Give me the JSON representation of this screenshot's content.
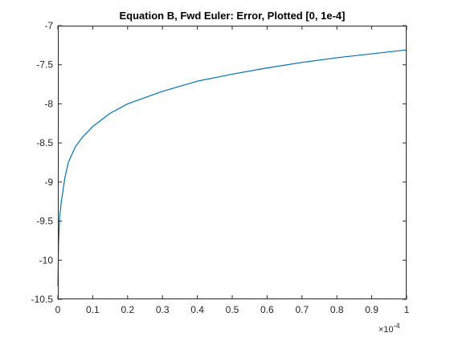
{
  "chart_data": {
    "type": "line",
    "title": "Equation B, Fwd Euler: Error, Plotted [0, 1e-4]",
    "xlabel": "",
    "ylabel": "",
    "x_multiplier_base": "×10",
    "x_multiplier_exponent": "-4",
    "xlim": [
      0,
      1
    ],
    "ylim": [
      -10.5,
      -7
    ],
    "x_ticks": [
      "0",
      "0.1",
      "0.2",
      "0.3",
      "0.4",
      "0.5",
      "0.6",
      "0.7",
      "0.8",
      "0.9",
      "1"
    ],
    "y_ticks": [
      "-7",
      "-7.5",
      "-8",
      "-8.5",
      "-9",
      "-9.5",
      "-10",
      "-10.5"
    ],
    "grid": false,
    "series": [
      {
        "color": "#0072BD",
        "x": [
          0.0,
          0.002,
          0.005,
          0.01,
          0.02,
          0.03,
          0.05,
          0.07,
          0.1,
          0.15,
          0.2,
          0.3,
          0.4,
          0.5,
          0.6,
          0.7,
          0.8,
          0.9,
          1.0
        ],
        "y": [
          -10.33,
          -9.8,
          -9.45,
          -9.25,
          -8.95,
          -8.75,
          -8.55,
          -8.43,
          -8.29,
          -8.12,
          -8.0,
          -7.84,
          -7.71,
          -7.62,
          -7.54,
          -7.47,
          -7.41,
          -7.36,
          -7.31
        ]
      }
    ]
  }
}
